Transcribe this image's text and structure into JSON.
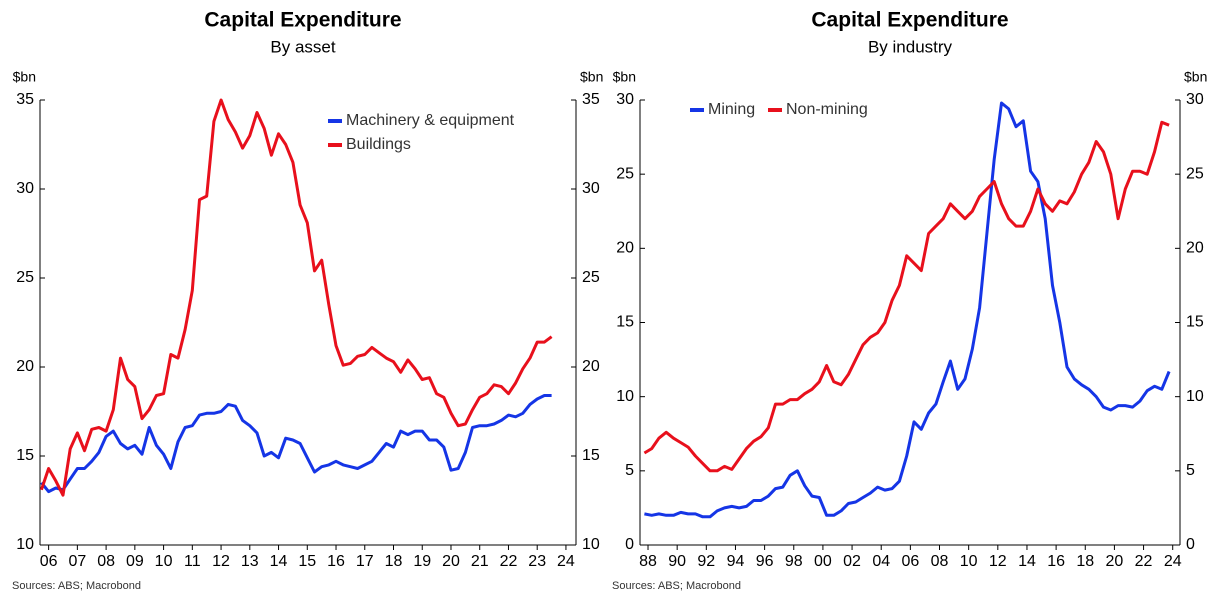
{
  "chart_data": [
    {
      "type": "line",
      "title": "Capital Expenditure",
      "subtitle": "By asset",
      "y_label": "$bn",
      "y2_label": "$bn",
      "source": "Sources: ABS; Macrobond",
      "legend": "upper right",
      "xlim": [
        2005.7,
        2024.35
      ],
      "ylim": [
        10,
        35
      ],
      "y2lim": [
        10,
        35
      ],
      "xticks": [
        {
          "value": 2006,
          "label": "06"
        },
        {
          "value": 2007,
          "label": "07"
        },
        {
          "value": 2008,
          "label": "08"
        },
        {
          "value": 2009,
          "label": "09"
        },
        {
          "value": 2010,
          "label": "10"
        },
        {
          "value": 2011,
          "label": "11"
        },
        {
          "value": 2012,
          "label": "12"
        },
        {
          "value": 2013,
          "label": "13"
        },
        {
          "value": 2014,
          "label": "14"
        },
        {
          "value": 2015,
          "label": "15"
        },
        {
          "value": 2016,
          "label": "16"
        },
        {
          "value": 2017,
          "label": "17"
        },
        {
          "value": 2018,
          "label": "18"
        },
        {
          "value": 2019,
          "label": "19"
        },
        {
          "value": 2020,
          "label": "20"
        },
        {
          "value": 2021,
          "label": "21"
        },
        {
          "value": 2022,
          "label": "22"
        },
        {
          "value": 2023,
          "label": "23"
        },
        {
          "value": 2024,
          "label": "24"
        }
      ],
      "yticks": [
        10,
        15,
        20,
        25,
        30,
        35
      ],
      "y2ticks": [
        10,
        15,
        20,
        25,
        30,
        35
      ],
      "x": [
        2005.75,
        2006,
        2006.25,
        2006.5,
        2006.75,
        2007,
        2007.25,
        2007.5,
        2007.75,
        2008,
        2008.25,
        2008.5,
        2008.75,
        2009,
        2009.25,
        2009.5,
        2009.75,
        2010,
        2010.25,
        2010.5,
        2010.75,
        2011,
        2011.25,
        2011.5,
        2011.75,
        2012,
        2012.25,
        2012.5,
        2012.75,
        2013,
        2013.25,
        2013.5,
        2013.75,
        2014,
        2014.25,
        2014.5,
        2014.75,
        2015,
        2015.25,
        2015.5,
        2015.75,
        2016,
        2016.25,
        2016.5,
        2016.75,
        2017,
        2017.25,
        2017.5,
        2017.75,
        2018,
        2018.25,
        2018.5,
        2018.75,
        2019,
        2019.25,
        2019.5,
        2019.75,
        2020,
        2020.25,
        2020.5,
        2020.75,
        2021,
        2021.25,
        2021.5,
        2021.75,
        2022,
        2022.25,
        2022.5,
        2022.75,
        2023,
        2023.25,
        2023.5
      ],
      "series": [
        {
          "name": "Machinery & equipment",
          "color": "#1535e6",
          "values": [
            13.5,
            13.0,
            13.2,
            13.1,
            13.7,
            14.3,
            14.3,
            14.7,
            15.2,
            16.1,
            16.4,
            15.7,
            15.4,
            15.6,
            15.1,
            16.6,
            15.6,
            15.1,
            14.3,
            15.8,
            16.6,
            16.7,
            17.3,
            17.4,
            17.4,
            17.5,
            17.9,
            17.8,
            17.0,
            16.7,
            16.3,
            15.0,
            15.2,
            14.9,
            16.0,
            15.9,
            15.7,
            14.9,
            14.1,
            14.4,
            14.5,
            14.7,
            14.5,
            14.4,
            14.3,
            14.5,
            14.7,
            15.2,
            15.7,
            15.5,
            16.4,
            16.2,
            16.4,
            16.4,
            15.9,
            15.9,
            15.5,
            14.2,
            14.3,
            15.2,
            16.6,
            16.7,
            16.7,
            16.8,
            17.0,
            17.3,
            17.2,
            17.4,
            17.9,
            18.2,
            18.4,
            18.4
          ]
        },
        {
          "name": "Buildings",
          "color": "#e8101c",
          "values": [
            13.1,
            14.3,
            13.6,
            12.8,
            15.4,
            16.3,
            15.3,
            16.5,
            16.6,
            16.4,
            17.6,
            20.5,
            19.3,
            18.9,
            17.1,
            17.6,
            18.4,
            18.5,
            20.7,
            20.5,
            22.1,
            24.3,
            29.4,
            29.6,
            33.8,
            35.0,
            33.9,
            33.2,
            32.3,
            33.0,
            34.3,
            33.4,
            31.9,
            33.1,
            32.5,
            31.5,
            29.1,
            28.1,
            25.4,
            26.0,
            23.5,
            21.2,
            20.1,
            20.2,
            20.6,
            20.7,
            21.1,
            20.8,
            20.5,
            20.3,
            19.7,
            20.4,
            19.9,
            19.3,
            19.4,
            18.5,
            18.3,
            17.4,
            16.7,
            16.8,
            17.6,
            18.3,
            18.5,
            19.0,
            18.9,
            18.5,
            19.1,
            19.9,
            20.5,
            21.4,
            21.4,
            21.7
          ]
        }
      ]
    },
    {
      "type": "line",
      "title": "Capital Expenditure",
      "subtitle": "By industry",
      "y_label": "$bn",
      "y2_label": "$bn",
      "source": "Sources: ABS; Macrobond",
      "legend": "upper left",
      "xlim": [
        1987.45,
        2024.5
      ],
      "ylim": [
        0,
        30
      ],
      "y2lim": [
        0,
        30
      ],
      "xticks": [
        {
          "value": 1988,
          "label": "88"
        },
        {
          "value": 1990,
          "label": "90"
        },
        {
          "value": 1992,
          "label": "92"
        },
        {
          "value": 1994,
          "label": "94"
        },
        {
          "value": 1996,
          "label": "96"
        },
        {
          "value": 1998,
          "label": "98"
        },
        {
          "value": 2000,
          "label": "00"
        },
        {
          "value": 2002,
          "label": "02"
        },
        {
          "value": 2004,
          "label": "04"
        },
        {
          "value": 2006,
          "label": "06"
        },
        {
          "value": 2008,
          "label": "08"
        },
        {
          "value": 2010,
          "label": "10"
        },
        {
          "value": 2012,
          "label": "12"
        },
        {
          "value": 2014,
          "label": "14"
        },
        {
          "value": 2016,
          "label": "16"
        },
        {
          "value": 2018,
          "label": "18"
        },
        {
          "value": 2020,
          "label": "20"
        },
        {
          "value": 2022,
          "label": "22"
        },
        {
          "value": 2024,
          "label": "24"
        }
      ],
      "yticks": [
        0,
        5,
        10,
        15,
        20,
        25,
        30
      ],
      "y2ticks": [
        0,
        5,
        10,
        15,
        20,
        25,
        30
      ],
      "x": [
        1987.75,
        1988.25,
        1988.75,
        1989.25,
        1989.75,
        1990.25,
        1990.75,
        1991.25,
        1991.75,
        1992.25,
        1992.75,
        1993.25,
        1993.75,
        1994.25,
        1994.75,
        1995.25,
        1995.75,
        1996.25,
        1996.75,
        1997.25,
        1997.75,
        1998.25,
        1998.75,
        1999.25,
        1999.75,
        2000.25,
        2000.75,
        2001.25,
        2001.75,
        2002.25,
        2002.75,
        2003.25,
        2003.75,
        2004.25,
        2004.75,
        2005.25,
        2005.75,
        2006.25,
        2006.75,
        2007.25,
        2007.75,
        2008.25,
        2008.75,
        2009.25,
        2009.75,
        2010.25,
        2010.75,
        2011.25,
        2011.75,
        2012.25,
        2012.75,
        2013.25,
        2013.75,
        2014.25,
        2014.75,
        2015.25,
        2015.75,
        2016.25,
        2016.75,
        2017.25,
        2017.75,
        2018.25,
        2018.75,
        2019.25,
        2019.75,
        2020.25,
        2020.75,
        2021.25,
        2021.75,
        2022.25,
        2022.75,
        2023.25,
        2023.75
      ],
      "series": [
        {
          "name": "Mining",
          "color": "#1535e6",
          "values": [
            2.1,
            2.0,
            2.1,
            2.0,
            2.0,
            2.2,
            2.1,
            2.1,
            1.9,
            1.9,
            2.3,
            2.5,
            2.6,
            2.5,
            2.6,
            3.0,
            3.0,
            3.3,
            3.8,
            3.9,
            4.7,
            5.0,
            4.0,
            3.3,
            3.2,
            2.0,
            2.0,
            2.3,
            2.8,
            2.9,
            3.2,
            3.5,
            3.9,
            3.7,
            3.8,
            4.3,
            6.0,
            8.3,
            7.8,
            8.9,
            9.5,
            11.0,
            12.4,
            10.5,
            11.2,
            13.2,
            16.0,
            21.0,
            26.0,
            29.8,
            29.4,
            28.2,
            28.6,
            25.2,
            24.5,
            22.0,
            17.5,
            15.0,
            12.0,
            11.2,
            10.8,
            10.5,
            10.0,
            9.3,
            9.1,
            9.4,
            9.4,
            9.3,
            9.7,
            10.4,
            10.7,
            10.5,
            11.7
          ]
        },
        {
          "name": "Non-mining",
          "color": "#e8101c",
          "values": [
            6.2,
            6.5,
            7.2,
            7.6,
            7.2,
            6.9,
            6.6,
            6.0,
            5.5,
            5.0,
            5.0,
            5.3,
            5.1,
            5.8,
            6.5,
            7.0,
            7.3,
            7.9,
            9.5,
            9.5,
            9.8,
            9.8,
            10.2,
            10.5,
            11.0,
            12.1,
            11.0,
            10.8,
            11.5,
            12.5,
            13.5,
            14.0,
            14.3,
            15.0,
            16.5,
            17.5,
            19.5,
            19.0,
            18.5,
            21.0,
            21.5,
            22.0,
            23.0,
            22.5,
            22.0,
            22.5,
            23.5,
            24.0,
            24.5,
            23.0,
            22.0,
            21.5,
            21.5,
            22.5,
            24.0,
            23.0,
            22.5,
            23.2,
            23.0,
            23.8,
            25.0,
            25.8,
            27.2,
            26.5,
            25.0,
            22.0,
            24.0,
            25.2,
            25.2,
            25.0,
            26.5,
            28.5,
            28.3
          ]
        }
      ]
    }
  ]
}
